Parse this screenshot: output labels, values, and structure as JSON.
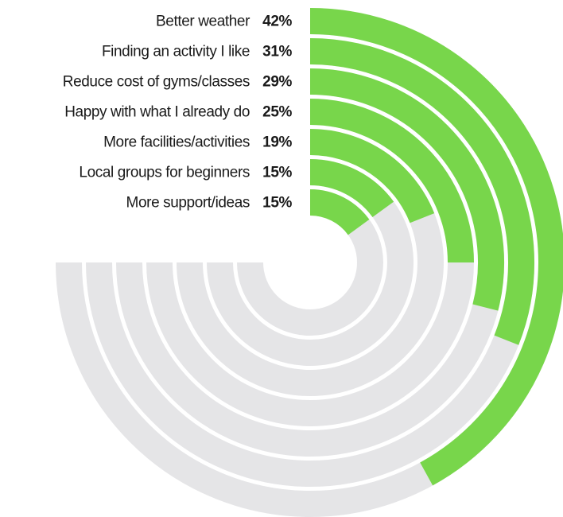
{
  "chart_data": {
    "type": "radial-bar",
    "categories": [
      "Better weather",
      "Finding an activity I like",
      "Reduce cost of gyms/classes",
      "Happy with what I already do",
      "More facilities/activities",
      "Local groups for beginners",
      "More support/ideas"
    ],
    "values": [
      42,
      31,
      29,
      25,
      19,
      15,
      15
    ],
    "value_labels": [
      "42%",
      "31%",
      "29%",
      "25%",
      "19%",
      "15%",
      "15%"
    ],
    "ylim": [
      0,
      100
    ],
    "color": "#78d64b",
    "track_color": "#e5e5e7"
  }
}
